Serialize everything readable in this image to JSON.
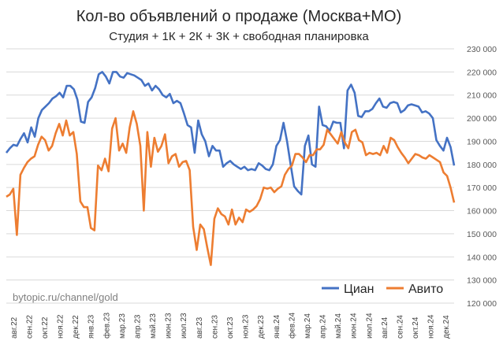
{
  "chart_data": {
    "type": "line",
    "title": "Кол-во объявлений о продаже (Москва+МО)",
    "subtitle": "Студия + 1К + 2К + 3К + свободная планировка",
    "watermark": "bytopic.ru/channel/gold",
    "ylim": [
      120000,
      230000
    ],
    "yticks": [
      "120 000",
      "130 000",
      "140 000",
      "150 000",
      "160 000",
      "170 000",
      "180 000",
      "190 000",
      "200 000",
      "210 000",
      "220 000",
      "230 000"
    ],
    "x_labels": [
      "авг.22",
      "сен.22",
      "окт.22",
      "ноя.22",
      "дек.22",
      "янв.23",
      "фев.23",
      "мар.23",
      "апр.23",
      "май.23",
      "июн.23",
      "июл.23",
      "авг.23",
      "сен.23",
      "окт.23",
      "ноя.23",
      "дек.23",
      "янв.24",
      "фев.24",
      "мар.24",
      "апр.24",
      "май.24",
      "июн.24",
      "июл.24",
      "авг.24",
      "сен.24",
      "окт.24",
      "ноя.24",
      "дек.24"
    ],
    "grid": true,
    "legend_position": "bottom-right",
    "series": [
      {
        "name": "Циан",
        "color": "#4472C4",
        "values": [
          185000,
          187000,
          188500,
          188000,
          191000,
          193500,
          189500,
          196000,
          192000,
          200000,
          203500,
          205000,
          206500,
          208500,
          209500,
          211000,
          209000,
          214000,
          214000,
          212500,
          208000,
          198500,
          198000,
          207000,
          209000,
          213000,
          219000,
          220000,
          218000,
          215000,
          220000,
          220000,
          218000,
          217500,
          219500,
          219000,
          218500,
          217500,
          216500,
          214000,
          215000,
          212000,
          214000,
          212500,
          210000,
          209000,
          210500,
          206500,
          207500,
          206500,
          202000,
          197000,
          196000,
          185000,
          199000,
          193000,
          190000,
          183500,
          188000,
          186000,
          186000,
          179000,
          180500,
          181500,
          180000,
          179000,
          178000,
          179000,
          177500,
          178000,
          177500,
          180500,
          179500,
          178000,
          177500,
          180000,
          188000,
          190500,
          198000,
          190000,
          180000,
          170500,
          168500,
          167000,
          188000,
          192500,
          180000,
          179000,
          205000,
          197000,
          196500,
          194500,
          198500,
          198000,
          198000,
          187000,
          212000,
          214500,
          211000,
          201000,
          200500,
          203000,
          203000,
          204000,
          206500,
          208500,
          205000,
          204500,
          206500,
          207000,
          206500,
          202500,
          203500,
          205500,
          206000,
          205500,
          205000,
          202500,
          203000,
          202000,
          200000,
          190500,
          188000,
          186000,
          191500,
          187500,
          179500
        ]
      },
      {
        "name": "Авито",
        "color": "#ED7D31",
        "values": [
          166000,
          167000,
          169500,
          149500,
          175500,
          178500,
          181000,
          182500,
          183500,
          188500,
          192000,
          190500,
          186000,
          188000,
          193500,
          197500,
          192500,
          199000,
          192500,
          194000,
          184500,
          164000,
          161500,
          161500,
          152500,
          151500,
          179500,
          177500,
          182500,
          177000,
          195500,
          200000,
          186000,
          189000,
          185000,
          196000,
          203000,
          197500,
          188000,
          160000,
          194000,
          179000,
          191500,
          185500,
          188000,
          193000,
          180500,
          183500,
          184500,
          179000,
          181000,
          181500,
          177500,
          153000,
          143000,
          154000,
          152000,
          144000,
          136500,
          156500,
          161000,
          158500,
          157500,
          154000,
          160500,
          154000,
          157000,
          155000,
          160500,
          159500,
          160500,
          162000,
          165000,
          170000,
          169500,
          170000,
          168000,
          169500,
          170500,
          175500,
          178000,
          179500,
          184500,
          184500,
          183000,
          181000,
          184000,
          184000,
          186500,
          186500,
          188500,
          195000,
          193000,
          191000,
          189000,
          194000,
          189500,
          187000,
          194000,
          195000,
          190500,
          189500,
          184000,
          185000,
          184500,
          185000,
          184000,
          188000,
          185000,
          191500,
          190500,
          187500,
          185000,
          183000,
          180500,
          182500,
          184500,
          184000,
          183000,
          182500,
          184000,
          183000,
          182000,
          181000,
          176500,
          175000,
          170000,
          163500
        ]
      }
    ]
  }
}
